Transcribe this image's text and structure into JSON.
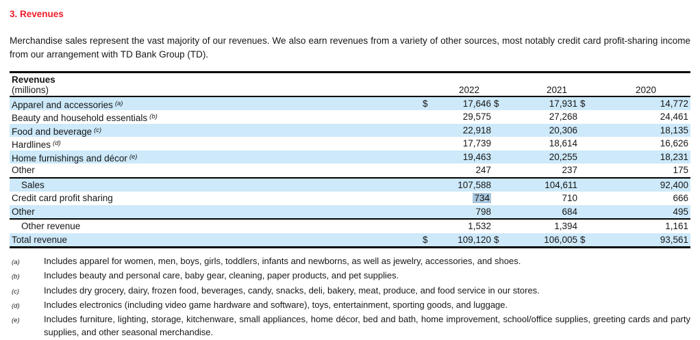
{
  "page": {
    "heading": "3. Revenues",
    "intro": "Merchandise sales represent the vast majority of our revenues. We also earn revenues from a variety of other sources, most notably credit card profit-sharing income from our arrangement with TD Bank Group (TD)."
  },
  "table": {
    "title": "Revenues",
    "subtitle": "(millions)",
    "years": [
      "2022",
      "2021",
      "2020"
    ],
    "rows": [
      {
        "label": "Apparel and accessories",
        "footnote_ref": "(a)",
        "dollar": "$",
        "values": [
          "17,646",
          "17,931",
          "14,772"
        ]
      },
      {
        "label": "Beauty and household essentials",
        "footnote_ref": "(b)",
        "values": [
          "29,575",
          "27,268",
          "24,461"
        ]
      },
      {
        "label": "Food and beverage",
        "footnote_ref": "(c)",
        "values": [
          "22,918",
          "20,306",
          "18,135"
        ]
      },
      {
        "label": "Hardlines",
        "footnote_ref": "(d)",
        "values": [
          "17,739",
          "18,614",
          "16,626"
        ]
      },
      {
        "label": "Home furnishings and décor",
        "footnote_ref": "(e)",
        "values": [
          "19,463",
          "20,255",
          "18,231"
        ]
      },
      {
        "label": "Other",
        "values": [
          "247",
          "237",
          "175"
        ]
      },
      {
        "label": "Sales",
        "values": [
          "107,588",
          "104,611",
          "92,400"
        ]
      },
      {
        "label": "Credit card profit sharing",
        "values": [
          "734",
          "710",
          "666"
        ],
        "highlighted_value": "734"
      },
      {
        "label": "Other",
        "values": [
          "798",
          "684",
          "495"
        ]
      },
      {
        "label": "Other revenue",
        "values": [
          "1,532",
          "1,394",
          "1,161"
        ]
      },
      {
        "label": "Total revenue",
        "dollar": "$",
        "values": [
          "109,120",
          "106,005",
          "93,561"
        ]
      }
    ]
  },
  "footnotes": [
    {
      "marker": "(a)",
      "text": "Includes apparel for women, men, boys, girls, toddlers, infants and newborns, as well as jewelry, accessories, and shoes."
    },
    {
      "marker": "(b)",
      "text": "Includes beauty and personal care, baby gear, cleaning, paper products, and pet supplies."
    },
    {
      "marker": "(c)",
      "text": "Includes dry grocery, dairy, frozen food, beverages, candy, snacks, deli, bakery, meat, produce, and food service in our stores."
    },
    {
      "marker": "(d)",
      "text": "Includes electronics (including video game hardware and software), toys, entertainment, sporting goods, and luggage."
    },
    {
      "marker": "(e)",
      "text": "Includes furniture, lighting, storage, kitchenware, small appliances, home décor, bed and bath, home improvement, school/office supplies, greeting cards and party supplies, and other seasonal merchandise."
    }
  ],
  "colors": {
    "heading_red": "#ed1b2a",
    "row_stripe_blue": "#cde9fa",
    "selection_highlight": "#a9c7de"
  }
}
